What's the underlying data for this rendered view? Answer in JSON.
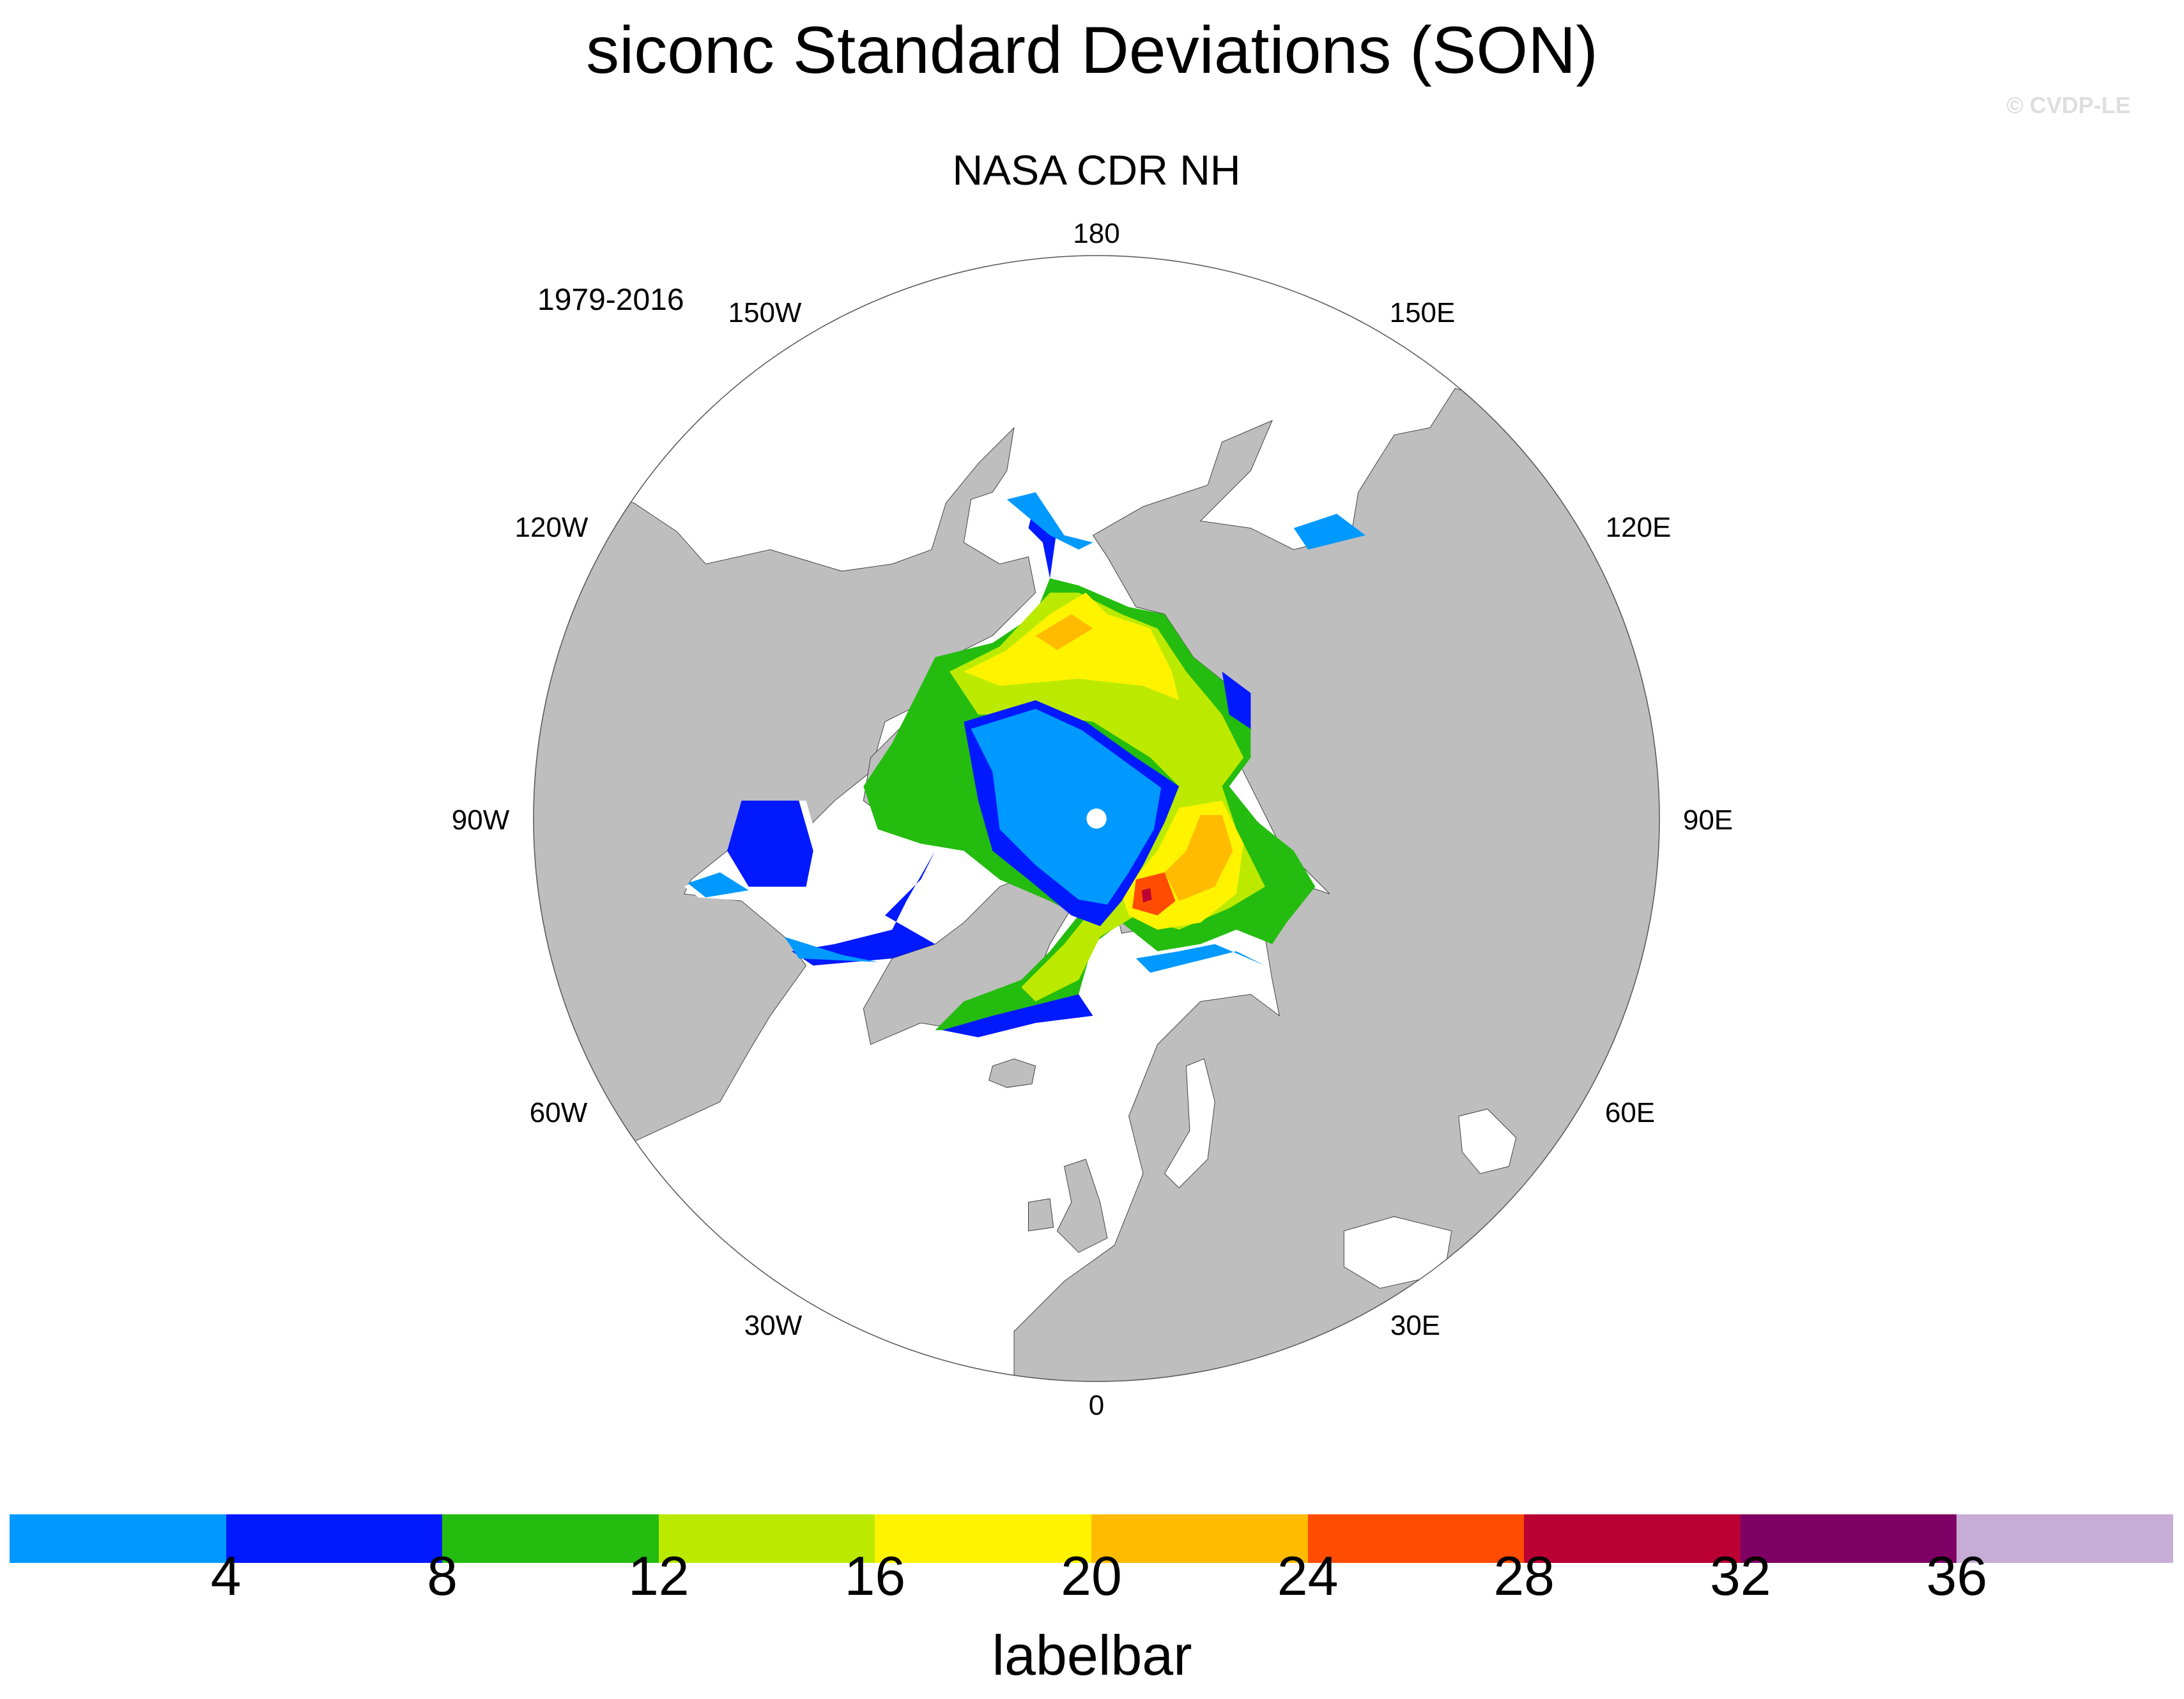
{
  "chart_data": {
    "type": "heatmap",
    "title": "siconc Standard Deviations (SON)",
    "subtitle": "NASA CDR NH",
    "period": "1979-2016",
    "credit": "© CVDP-LE",
    "projection": "north polar stereographic",
    "longitude_labels": [
      "180",
      "150E",
      "120E",
      "90E",
      "60E",
      "30E",
      "0",
      "30W",
      "60W",
      "90W",
      "120W",
      "150W"
    ],
    "colorbar": {
      "label": "labelbar",
      "levels": [
        4,
        8,
        12,
        16,
        20,
        24,
        28,
        32,
        36
      ],
      "colors": [
        "#0099ff",
        "#0019ff",
        "#24bc0f",
        "#bbea00",
        "#fff300",
        "#ffbb00",
        "#ff4c00",
        "#bb0034",
        "#7f0064",
        "#c7acd6"
      ]
    },
    "land_color": "#bebebe",
    "missing_color": "#ffffff"
  }
}
